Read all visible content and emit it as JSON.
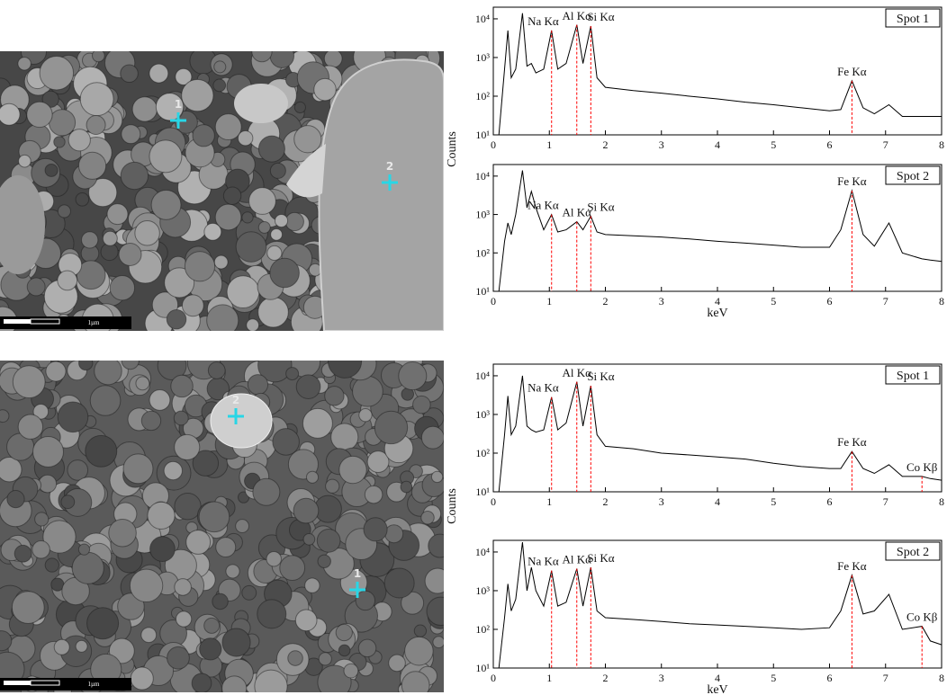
{
  "images": [
    {
      "markers": [
        "1",
        "2"
      ],
      "scale_label": "1µm"
    },
    {
      "markers": [
        "2",
        "1"
      ],
      "scale_label": "1µm"
    }
  ],
  "chart_data": [
    {
      "type": "line",
      "label": "Spot 1",
      "ylabel": "Counts",
      "log_y": true,
      "color": "#000000",
      "marker_line_color": "#ff0000",
      "xlim": [
        0,
        8
      ],
      "xticks": [
        0,
        1,
        2,
        3,
        4,
        5,
        6,
        7,
        8
      ],
      "ylim": [
        10,
        20000
      ],
      "yticks": [
        {
          "value": 10,
          "label": "10¹"
        },
        {
          "value": 100,
          "label": "10²"
        },
        {
          "value": 1000,
          "label": "10³"
        },
        {
          "value": 10000,
          "label": "10⁴"
        }
      ],
      "annotations": [
        {
          "text": "Na Kα",
          "x": 1.04
        },
        {
          "text": "Al Kα",
          "x": 1.49
        },
        {
          "text": "Si Kα",
          "x": 1.74
        },
        {
          "text": "Fe Kα",
          "x": 6.4
        }
      ],
      "x": [
        0.1,
        0.2,
        0.26,
        0.32,
        0.4,
        0.52,
        0.6,
        0.68,
        0.76,
        0.9,
        1.04,
        1.15,
        1.3,
        1.49,
        1.6,
        1.74,
        1.85,
        2.0,
        2.5,
        3,
        3.5,
        4,
        4.5,
        5,
        5.5,
        6,
        6.2,
        6.4,
        6.6,
        6.8,
        7.06,
        7.3,
        7.65,
        7.8,
        8.0
      ],
      "values": [
        10,
        500,
        5000,
        300,
        500,
        14000,
        600,
        700,
        400,
        500,
        5000,
        500,
        700,
        7000,
        700,
        6500,
        300,
        170,
        140,
        120,
        100,
        85,
        70,
        60,
        50,
        42,
        45,
        250,
        50,
        35,
        60,
        30,
        30,
        30,
        30
      ]
    },
    {
      "type": "line",
      "label": "Spot 2",
      "xlabel": "keV",
      "log_y": true,
      "color": "#000000",
      "marker_line_color": "#ff0000",
      "xlim": [
        0,
        8
      ],
      "xticks": [
        0,
        1,
        2,
        3,
        4,
        5,
        6,
        7,
        8
      ],
      "ylim": [
        10,
        20000
      ],
      "yticks": [
        {
          "value": 10,
          "label": "10¹"
        },
        {
          "value": 100,
          "label": "10²"
        },
        {
          "value": 1000,
          "label": "10³"
        },
        {
          "value": 10000,
          "label": "10⁴"
        }
      ],
      "annotations": [
        {
          "text": "Na Kα",
          "x": 1.04
        },
        {
          "text": "Al Kα",
          "x": 1.49
        },
        {
          "text": "Si Kα",
          "x": 1.74
        },
        {
          "text": "Fe Kα",
          "x": 6.4
        }
      ],
      "x": [
        0.1,
        0.2,
        0.26,
        0.32,
        0.4,
        0.52,
        0.6,
        0.68,
        0.76,
        0.9,
        1.04,
        1.15,
        1.3,
        1.49,
        1.6,
        1.74,
        1.85,
        2.0,
        2.5,
        3,
        3.5,
        4,
        4.5,
        5,
        5.5,
        6,
        6.2,
        6.4,
        6.6,
        6.8,
        7.06,
        7.3,
        7.65,
        7.8,
        8.0
      ],
      "values": [
        10,
        200,
        600,
        300,
        1000,
        14000,
        1500,
        4000,
        1500,
        400,
        1000,
        350,
        400,
        650,
        400,
        900,
        350,
        300,
        280,
        260,
        230,
        200,
        180,
        160,
        140,
        140,
        400,
        4200,
        300,
        150,
        600,
        100,
        70,
        65,
        60
      ]
    },
    {
      "type": "line",
      "label": "Spot 1",
      "ylabel": "Counts",
      "log_y": true,
      "color": "#000000",
      "marker_line_color": "#ff0000",
      "xlim": [
        0,
        8
      ],
      "xticks": [
        0,
        1,
        2,
        3,
        4,
        5,
        6,
        7,
        8
      ],
      "ylim": [
        10,
        20000
      ],
      "yticks": [
        {
          "value": 10,
          "label": "10¹"
        },
        {
          "value": 100,
          "label": "10²"
        },
        {
          "value": 1000,
          "label": "10³"
        },
        {
          "value": 10000,
          "label": "10⁴"
        }
      ],
      "annotations": [
        {
          "text": "Na Kα",
          "x": 1.04
        },
        {
          "text": "Al Kα",
          "x": 1.49
        },
        {
          "text": "Si Kα",
          "x": 1.74
        },
        {
          "text": "Fe Kα",
          "x": 6.4
        },
        {
          "text": "Co Kβ",
          "x": 7.65
        }
      ],
      "x": [
        0.1,
        0.2,
        0.26,
        0.32,
        0.4,
        0.52,
        0.6,
        0.68,
        0.76,
        0.9,
        1.04,
        1.15,
        1.3,
        1.49,
        1.6,
        1.74,
        1.85,
        2.0,
        2.5,
        3,
        3.5,
        4,
        4.5,
        5,
        5.5,
        6,
        6.2,
        6.4,
        6.6,
        6.8,
        7.06,
        7.3,
        7.65,
        7.8,
        8.0
      ],
      "values": [
        10,
        300,
        3000,
        300,
        500,
        10000,
        500,
        400,
        350,
        400,
        2800,
        400,
        600,
        7000,
        500,
        5500,
        300,
        150,
        130,
        100,
        90,
        80,
        70,
        55,
        45,
        40,
        40,
        110,
        40,
        30,
        50,
        25,
        25,
        22,
        20
      ]
    },
    {
      "type": "line",
      "label": "Spot 2",
      "xlabel": "keV",
      "log_y": true,
      "color": "#000000",
      "marker_line_color": "#ff0000",
      "xlim": [
        0,
        8
      ],
      "xticks": [
        0,
        1,
        2,
        3,
        4,
        5,
        6,
        7,
        8
      ],
      "ylim": [
        10,
        20000
      ],
      "yticks": [
        {
          "value": 10,
          "label": "10¹"
        },
        {
          "value": 100,
          "label": "10²"
        },
        {
          "value": 1000,
          "label": "10³"
        },
        {
          "value": 10000,
          "label": "10⁴"
        }
      ],
      "annotations": [
        {
          "text": "Na Kα",
          "x": 1.04
        },
        {
          "text": "Al Kα",
          "x": 1.49
        },
        {
          "text": "Si Kα",
          "x": 1.74
        },
        {
          "text": "Fe Kα",
          "x": 6.4
        },
        {
          "text": "Co Kβ",
          "x": 7.65
        }
      ],
      "x": [
        0.1,
        0.2,
        0.26,
        0.32,
        0.4,
        0.52,
        0.6,
        0.68,
        0.76,
        0.9,
        1.04,
        1.15,
        1.3,
        1.49,
        1.6,
        1.74,
        1.85,
        2.0,
        2.5,
        3,
        3.5,
        4,
        4.5,
        5,
        5.5,
        6,
        6.2,
        6.4,
        6.6,
        6.8,
        7.06,
        7.3,
        7.65,
        7.8,
        8.0
      ],
      "values": [
        10,
        200,
        1500,
        300,
        600,
        18000,
        1000,
        4000,
        1000,
        400,
        3300,
        400,
        500,
        3700,
        400,
        4000,
        300,
        200,
        180,
        160,
        140,
        130,
        120,
        110,
        100,
        110,
        300,
        2500,
        250,
        300,
        800,
        100,
        120,
        50,
        40
      ]
    }
  ]
}
